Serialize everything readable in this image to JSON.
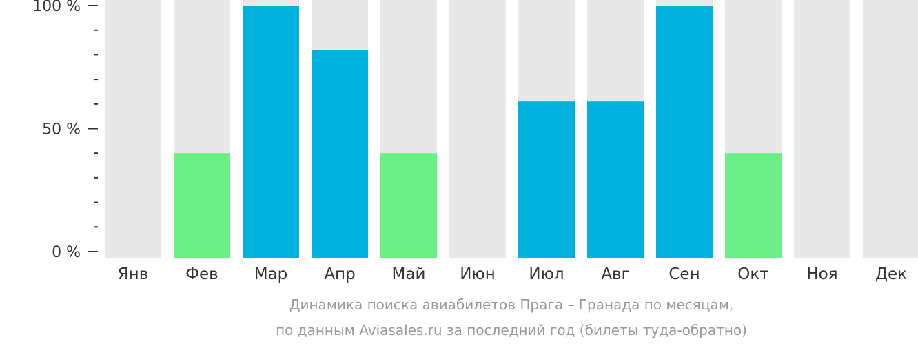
{
  "chart_data": {
    "type": "bar",
    "categories": [
      "Янв",
      "Фев",
      "Мар",
      "Апр",
      "Май",
      "Июн",
      "Июл",
      "Авг",
      "Сен",
      "Окт",
      "Ноя",
      "Дек"
    ],
    "values": [
      0,
      40,
      100,
      82,
      40,
      0,
      61,
      61,
      100,
      40,
      0,
      0
    ],
    "bar_colors": [
      "#6af086",
      "#6af086",
      "#00b0dd",
      "#00b0dd",
      "#6af086",
      "#6af086",
      "#00b0dd",
      "#00b0dd",
      "#00b0dd",
      "#6af086",
      "#6af086",
      "#6af086"
    ],
    "background_color": "#e8e8e8",
    "ylim": [
      0,
      100
    ],
    "yticks": [
      {
        "value": 0,
        "label": "0 %"
      },
      {
        "value": 50,
        "label": "50 %"
      },
      {
        "value": 100,
        "label": "100 %"
      }
    ],
    "minor_tick_step": 10,
    "caption_line1": "Динамика поиска авиабилетов Прага – Гранада по месяцам,",
    "caption_line2": "по данным Aviasales.ru за последний год (билеты туда-обратно)",
    "xlabel": "",
    "ylabel": ""
  }
}
